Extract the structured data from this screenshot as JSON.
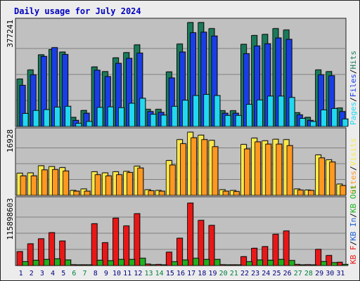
{
  "title": "Daily usage for July 2024",
  "colors": {
    "background": "#ececec",
    "frame": "#222222",
    "panel": "#c0c0c0",
    "gridline": "#808080",
    "title": "#0000c0",
    "hits": "#1a7a5a",
    "files": "#1a3ee6",
    "pages": "#22d8f0",
    "visits": "#f8e84a",
    "sites": "#ff9820",
    "kb_f": "#e81818",
    "kb_in": "#2060d0",
    "kb_out": "#20b020",
    "weekday_label": "#000080",
    "weekend_label": "#008040"
  },
  "chart_data": {
    "type": "bar",
    "title": "Daily usage for July 2024",
    "categories": [
      "1",
      "2",
      "3",
      "4",
      "5",
      "6",
      "7",
      "8",
      "9",
      "10",
      "11",
      "12",
      "13",
      "14",
      "15",
      "16",
      "17",
      "18",
      "19",
      "20",
      "21",
      "22",
      "23",
      "24",
      "25",
      "26",
      "27",
      "28",
      "29",
      "30",
      "31"
    ],
    "weekend_days": [
      "6",
      "7",
      "13",
      "14",
      "20",
      "21",
      "27",
      "28"
    ],
    "panels": [
      {
        "id": "hits",
        "max_label": "377241",
        "ymax": 377241,
        "right_legend": [
          {
            "text": "Pages",
            "color": "#22d8f0"
          },
          {
            "text": "/",
            "color": "#000000"
          },
          {
            "text": "Files",
            "color": "#1a3ee6"
          },
          {
            "text": "/",
            "color": "#000000"
          },
          {
            "text": "Hits",
            "color": "#1a7a5a"
          }
        ],
        "series": [
          {
            "name": "Hits",
            "color": "#1a7a5a",
            "values": [
              172000,
              205000,
              260000,
              279000,
              270000,
              33000,
              58000,
              216000,
              199000,
              249000,
              268000,
              296000,
              62000,
              62000,
              198000,
              299000,
              377000,
              377000,
              355000,
              57000,
              57000,
              298000,
              330000,
              334000,
              355000,
              350000,
              50000,
              33000,
              205000,
              199000,
              67000
            ]
          },
          {
            "name": "Files",
            "color": "#1a3ee6",
            "values": [
              149000,
              187000,
              254000,
              286000,
              261000,
              22000,
              48000,
              204000,
              181000,
              229000,
              247000,
              266000,
              54000,
              51000,
              176000,
              270000,
              340000,
              342000,
              328000,
              48000,
              48000,
              264000,
              292000,
              300000,
              321000,
              316000,
              42000,
              22000,
              187000,
              184000,
              54000
            ]
          },
          {
            "name": "Pages",
            "color": "#22d8f0",
            "values": [
              47000,
              58000,
              61000,
              70000,
              73000,
              11000,
              18000,
              69000,
              71000,
              68000,
              84000,
              102000,
              44000,
              41000,
              73000,
              95000,
              112000,
              116000,
              112000,
              40000,
              40000,
              80000,
              96000,
              110000,
              110000,
              105000,
              29000,
              18000,
              60000,
              65000,
              27000
            ]
          }
        ]
      },
      {
        "id": "visits",
        "max_label": "16928",
        "ymax": 16928,
        "right_legend": [
          {
            "text": "Sites",
            "color": "#ff9820"
          },
          {
            "text": "/",
            "color": "#000000"
          },
          {
            "text": "Visits",
            "color": "#f8e84a"
          }
        ],
        "series": [
          {
            "name": "Visits",
            "color": "#f8e84a",
            "values": [
              5900,
              6000,
              7900,
              7700,
              7400,
              1300,
              1700,
              6300,
              6000,
              6300,
              6400,
              7800,
              1500,
              1300,
              9300,
              14900,
              16900,
              16100,
              14700,
              1500,
              1300,
              13600,
              15300,
              14600,
              15000,
              14900,
              1700,
              1400,
              10800,
              9500,
              3000
            ]
          },
          {
            "name": "Sites",
            "color": "#ff9820",
            "values": [
              5200,
              5200,
              6800,
              6900,
              6500,
              1100,
              1100,
              5500,
              5200,
              5500,
              6100,
              7300,
              1200,
              1100,
              8100,
              13800,
              15400,
              14900,
              13000,
              1100,
              1000,
              12400,
              14300,
              13700,
              13700,
              13300,
              1400,
              1300,
              10000,
              8900,
              2600
            ]
          }
        ]
      },
      {
        "id": "kbytes",
        "max_label": "115898603",
        "ymax": 115898603,
        "right_legend": [
          {
            "text": "KB F",
            "color": "#e81818"
          },
          {
            "text": "/",
            "color": "#000000"
          },
          {
            "text": "KB In",
            "color": "#2060d0"
          },
          {
            "text": "/",
            "color": "#000000"
          },
          {
            "text": "KB Out",
            "color": "#20b020"
          }
        ],
        "series": [
          {
            "name": "KB F",
            "color": "#e81818",
            "values": [
              25000000,
              39000000,
              48000000,
              59000000,
              44000000,
              1500000,
              1300000,
              75000000,
              41000000,
              85000000,
              71000000,
              93000000,
              2600000,
              1900000,
              24000000,
              49000000,
              112000000,
              81000000,
              72000000,
              1500000,
              1300000,
              16000000,
              31000000,
              34000000,
              56000000,
              62000000,
              2000000,
              1500000,
              29000000,
              18000000,
              5900000
            ]
          },
          {
            "name": "KB In",
            "color": "#2060d0",
            "values": [
              0,
              0,
              0,
              0,
              0,
              0,
              0,
              0,
              0,
              0,
              0,
              0,
              0,
              0,
              0,
              0,
              0,
              0,
              0,
              0,
              0,
              0,
              0,
              0,
              0,
              0,
              0,
              0,
              0,
              0,
              0
            ]
          },
          {
            "name": "KB Out",
            "color": "#20b020",
            "values": [
              6800000,
              9400000,
              11000000,
              12000000,
              10000000,
              800000,
              700000,
              9500000,
              8700000,
              11000000,
              11000000,
              13000000,
              1400000,
              1100000,
              6700000,
              10000000,
              13000000,
              11000000,
              11000000,
              900000,
              800000,
              6800000,
              10000000,
              9600000,
              11000000,
              9000000,
              1200000,
              1000000,
              7200000,
              5200000,
              2000000
            ]
          }
        ]
      }
    ]
  }
}
